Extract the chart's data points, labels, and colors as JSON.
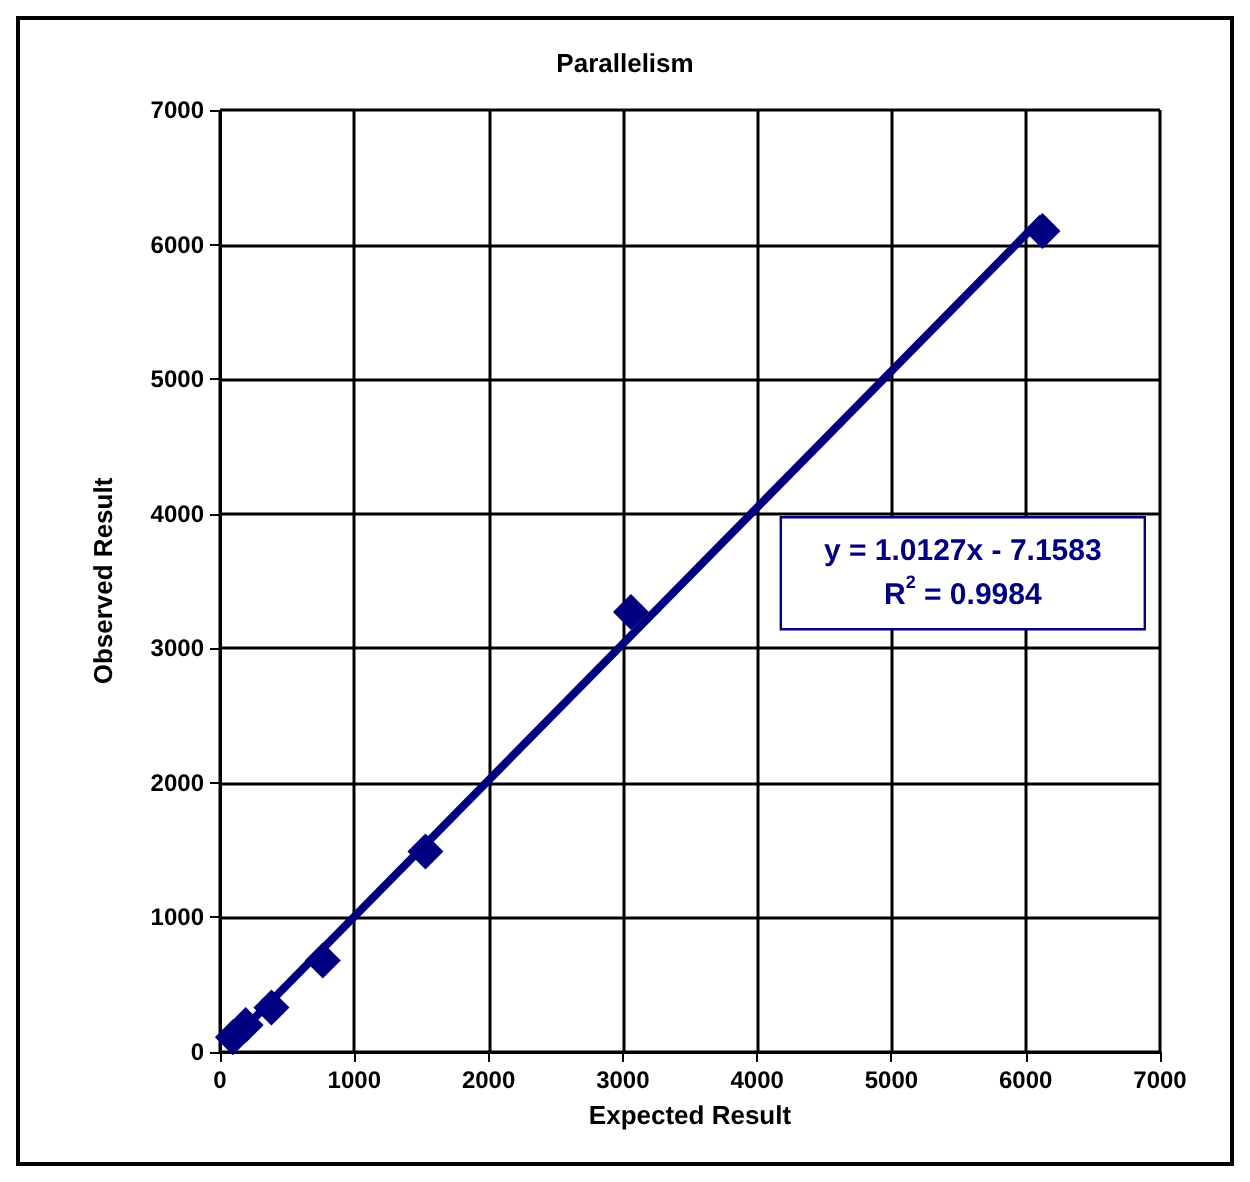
{
  "chart_data": {
    "type": "scatter",
    "title": "Parallelism",
    "xlabel": "Expected Result",
    "ylabel": "Observed Result",
    "x": [
      96,
      191,
      383,
      765,
      1530,
      3060,
      6125
    ],
    "series": [
      {
        "color": "#000080",
        "values": [
          110,
          200,
          330,
          680,
          1490,
          3270,
          6100
        ]
      },
      {
        "type": "line",
        "color": "#000080",
        "marker": "none",
        "x": [
          96,
          6125
        ],
        "values": [
          90,
          6200
        ]
      }
    ],
    "xlim": [
      0,
      7000
    ],
    "ylim": [
      0,
      7000
    ],
    "xticks": [
      0,
      1000,
      2000,
      3000,
      4000,
      5000,
      6000,
      7000
    ],
    "yticks": [
      0,
      1000,
      2000,
      3000,
      4000,
      5000,
      6000,
      7000
    ],
    "grid": true,
    "marker": "diamond",
    "annotations": [
      "y = 1.0127x - 7.1583",
      "R$^{2}$ = 0.9984"
    ]
  }
}
